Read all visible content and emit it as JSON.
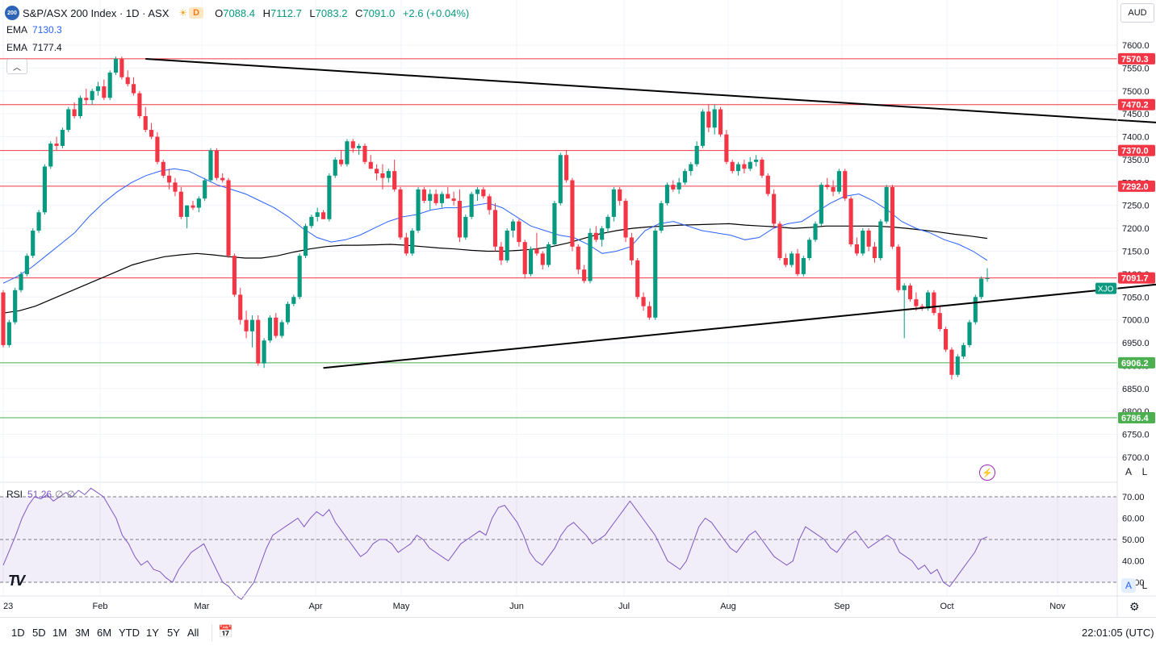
{
  "header": {
    "symbol_badge": "200",
    "title": "S&P/ASX 200 Index · 1D · ASX",
    "market_status": "D",
    "ohlc": {
      "o_label": "O",
      "o": "7088.4",
      "h_label": "H",
      "h": "7112.7",
      "l_label": "L",
      "l": "7083.2",
      "c_label": "C",
      "c": "7091.0",
      "change": "+2.6 (+0.04%)"
    }
  },
  "indicators": {
    "ema_fast": {
      "label": "EMA",
      "value": "7130.3",
      "color": "#2962ff"
    },
    "ema_slow": {
      "label": "EMA",
      "value": "7177.4",
      "color": "#000000"
    },
    "rsi": {
      "label": "RSI",
      "value": "51.26",
      "extra1": "∅",
      "extra2": "∅",
      "color": "#7e57c2"
    }
  },
  "currency": "AUD",
  "auto_label": "A",
  "log_label": "L",
  "timeframes": [
    "1D",
    "5D",
    "1M",
    "3M",
    "6M",
    "YTD",
    "1Y",
    "5Y",
    "All"
  ],
  "clock": "22:01:05 (UTC)",
  "colors": {
    "up": "#089981",
    "down": "#f23645",
    "resistance": "#f23645",
    "support": "#4caf50",
    "rsi_band": "#7e57c2"
  },
  "chart_data": {
    "type": "candlestick",
    "ylim": [
      6650,
      7650
    ],
    "y_ticks": [
      "7600.0",
      "7550.0",
      "7500.0",
      "7450.0",
      "7400.0",
      "7350.0",
      "7300.0",
      "7250.0",
      "7200.0",
      "7150.0",
      "7100.0",
      "7050.0",
      "7000.0",
      "6950.0",
      "6900.0",
      "6850.0",
      "6800.0",
      "6750.0",
      "6700.0"
    ],
    "x_labels": [
      "23",
      "Feb",
      "Mar",
      "Apr",
      "May",
      "Jun",
      "Jul",
      "Aug",
      "Sep",
      "Oct",
      "Nov"
    ],
    "price_tag": {
      "label": "XJO",
      "value": "7091.7"
    },
    "horizontal_levels": [
      {
        "value": 7570.3,
        "label": "7570.3",
        "type": "resistance"
      },
      {
        "value": 7470.2,
        "label": "7470.2",
        "type": "resistance"
      },
      {
        "value": 7370.0,
        "label": "7370.0",
        "type": "resistance"
      },
      {
        "value": 7292.0,
        "label": "7292.0",
        "type": "resistance"
      },
      {
        "value": 7091.7,
        "label": "7091.7",
        "type": "resistance"
      },
      {
        "value": 6906.2,
        "label": "6906.2",
        "type": "support"
      },
      {
        "value": 6786.4,
        "label": "6786.4",
        "type": "support"
      }
    ],
    "trendlines": [
      {
        "from": [
          24,
          7570
        ],
        "to": [
          202,
          7425
        ]
      },
      {
        "from": [
          54,
          6895
        ],
        "to": [
          212,
          7100
        ]
      }
    ],
    "candles": [
      [
        7060,
        7065,
        6940,
        6945
      ],
      [
        6945,
        7000,
        6940,
        6995
      ],
      [
        6995,
        7070,
        6990,
        7065
      ],
      [
        7065,
        7105,
        7060,
        7100
      ],
      [
        7100,
        7145,
        7095,
        7140
      ],
      [
        7140,
        7200,
        7135,
        7195
      ],
      [
        7195,
        7240,
        7190,
        7235
      ],
      [
        7235,
        7340,
        7230,
        7335
      ],
      [
        7335,
        7390,
        7330,
        7385
      ],
      [
        7385,
        7400,
        7370,
        7380
      ],
      [
        7380,
        7420,
        7375,
        7415
      ],
      [
        7415,
        7465,
        7410,
        7460
      ],
      [
        7460,
        7475,
        7440,
        7445
      ],
      [
        7445,
        7490,
        7440,
        7485
      ],
      [
        7485,
        7505,
        7470,
        7480
      ],
      [
        7480,
        7505,
        7470,
        7500
      ],
      [
        7500,
        7520,
        7490,
        7510
      ],
      [
        7510,
        7525,
        7480,
        7485
      ],
      [
        7485,
        7545,
        7480,
        7540
      ],
      [
        7540,
        7575,
        7535,
        7570
      ],
      [
        7570,
        7575,
        7525,
        7530
      ],
      [
        7530,
        7545,
        7510,
        7515
      ],
      [
        7515,
        7530,
        7490,
        7495
      ],
      [
        7495,
        7500,
        7440,
        7445
      ],
      [
        7445,
        7465,
        7410,
        7415
      ],
      [
        7415,
        7430,
        7395,
        7400
      ],
      [
        7400,
        7410,
        7340,
        7345
      ],
      [
        7345,
        7350,
        7310,
        7315
      ],
      [
        7315,
        7330,
        7285,
        7300
      ],
      [
        7300,
        7310,
        7270,
        7280
      ],
      [
        7280,
        7290,
        7220,
        7225
      ],
      [
        7225,
        7250,
        7200,
        7250
      ],
      [
        7250,
        7260,
        7240,
        7245
      ],
      [
        7245,
        7270,
        7235,
        7265
      ],
      [
        7265,
        7310,
        7260,
        7305
      ],
      [
        7305,
        7375,
        7300,
        7370
      ],
      [
        7370,
        7375,
        7305,
        7310
      ],
      [
        7310,
        7320,
        7300,
        7305
      ],
      [
        7305,
        7310,
        7135,
        7140
      ],
      [
        7140,
        7145,
        7050,
        7055
      ],
      [
        7055,
        7070,
        6990,
        7000
      ],
      [
        7000,
        7020,
        6960,
        6975
      ],
      [
        6975,
        7010,
        6940,
        7000
      ],
      [
        7000,
        7010,
        6900,
        6905
      ],
      [
        6905,
        6960,
        6895,
        6955
      ],
      [
        6955,
        7010,
        6950,
        7005
      ],
      [
        7005,
        7015,
        6960,
        6965
      ],
      [
        6965,
        7000,
        6960,
        6995
      ],
      [
        6995,
        7040,
        6990,
        7035
      ],
      [
        7035,
        7055,
        7030,
        7050
      ],
      [
        7050,
        7145,
        7045,
        7140
      ],
      [
        7140,
        7210,
        7135,
        7205
      ],
      [
        7205,
        7230,
        7200,
        7225
      ],
      [
        7225,
        7245,
        7215,
        7235
      ],
      [
        7235,
        7240,
        7220,
        7220
      ],
      [
        7220,
        7320,
        7215,
        7315
      ],
      [
        7315,
        7355,
        7310,
        7350
      ],
      [
        7350,
        7370,
        7335,
        7340
      ],
      [
        7340,
        7395,
        7335,
        7390
      ],
      [
        7390,
        7395,
        7365,
        7375
      ],
      [
        7375,
        7385,
        7360,
        7380
      ],
      [
        7380,
        7385,
        7340,
        7345
      ],
      [
        7345,
        7360,
        7330,
        7330
      ],
      [
        7330,
        7340,
        7305,
        7320
      ],
      [
        7320,
        7340,
        7285,
        7310
      ],
      [
        7310,
        7330,
        7300,
        7325
      ],
      [
        7325,
        7350,
        7280,
        7285
      ],
      [
        7285,
        7290,
        7175,
        7180
      ],
      [
        7180,
        7190,
        7140,
        7145
      ],
      [
        7145,
        7200,
        7140,
        7195
      ],
      [
        7195,
        7290,
        7190,
        7285
      ],
      [
        7285,
        7290,
        7255,
        7260
      ],
      [
        7260,
        7285,
        7240,
        7275
      ],
      [
        7275,
        7285,
        7250,
        7255
      ],
      [
        7255,
        7280,
        7245,
        7275
      ],
      [
        7275,
        7290,
        7265,
        7265
      ],
      [
        7265,
        7280,
        7250,
        7260
      ],
      [
        7260,
        7285,
        7170,
        7180
      ],
      [
        7180,
        7230,
        7175,
        7225
      ],
      [
        7225,
        7280,
        7220,
        7275
      ],
      [
        7275,
        7290,
        7260,
        7285
      ],
      [
        7285,
        7290,
        7265,
        7270
      ],
      [
        7270,
        7275,
        7230,
        7240
      ],
      [
        7240,
        7255,
        7150,
        7160
      ],
      [
        7160,
        7170,
        7120,
        7130
      ],
      [
        7130,
        7200,
        7125,
        7195
      ],
      [
        7195,
        7220,
        7180,
        7215
      ],
      [
        7215,
        7220,
        7160,
        7170
      ],
      [
        7170,
        7175,
        7090,
        7100
      ],
      [
        7100,
        7160,
        7095,
        7155
      ],
      [
        7155,
        7190,
        7140,
        7145
      ],
      [
        7145,
        7150,
        7110,
        7120
      ],
      [
        7120,
        7170,
        7115,
        7165
      ],
      [
        7165,
        7260,
        7160,
        7255
      ],
      [
        7255,
        7365,
        7250,
        7360
      ],
      [
        7360,
        7370,
        7300,
        7305
      ],
      [
        7305,
        7310,
        7150,
        7160
      ],
      [
        7160,
        7165,
        7100,
        7110
      ],
      [
        7110,
        7120,
        7080,
        7085
      ],
      [
        7085,
        7200,
        7080,
        7190
      ],
      [
        7190,
        7205,
        7170,
        7175
      ],
      [
        7175,
        7205,
        7160,
        7200
      ],
      [
        7200,
        7230,
        7190,
        7225
      ],
      [
        7225,
        7290,
        7215,
        7285
      ],
      [
        7285,
        7290,
        7250,
        7260
      ],
      [
        7260,
        7265,
        7170,
        7180
      ],
      [
        7180,
        7190,
        7120,
        7130
      ],
      [
        7130,
        7135,
        7045,
        7050
      ],
      [
        7050,
        7060,
        7020,
        7030
      ],
      [
        7030,
        7040,
        7000,
        7005
      ],
      [
        7005,
        7200,
        7000,
        7195
      ],
      [
        7195,
        7260,
        7190,
        7255
      ],
      [
        7255,
        7300,
        7250,
        7295
      ],
      [
        7295,
        7305,
        7280,
        7285
      ],
      [
        7285,
        7310,
        7275,
        7300
      ],
      [
        7300,
        7330,
        7295,
        7325
      ],
      [
        7325,
        7345,
        7315,
        7340
      ],
      [
        7340,
        7390,
        7335,
        7380
      ],
      [
        7380,
        7460,
        7375,
        7455
      ],
      [
        7455,
        7470,
        7410,
        7420
      ],
      [
        7420,
        7470,
        7405,
        7460
      ],
      [
        7460,
        7465,
        7400,
        7405
      ],
      [
        7405,
        7415,
        7340,
        7345
      ],
      [
        7345,
        7350,
        7320,
        7325
      ],
      [
        7325,
        7345,
        7315,
        7340
      ],
      [
        7340,
        7350,
        7320,
        7330
      ],
      [
        7330,
        7355,
        7325,
        7345
      ],
      [
        7345,
        7360,
        7335,
        7350
      ],
      [
        7350,
        7355,
        7310,
        7315
      ],
      [
        7315,
        7320,
        7270,
        7275
      ],
      [
        7275,
        7285,
        7200,
        7210
      ],
      [
        7210,
        7215,
        7130,
        7135
      ],
      [
        7135,
        7145,
        7115,
        7120
      ],
      [
        7120,
        7150,
        7115,
        7145
      ],
      [
        7145,
        7155,
        7095,
        7100
      ],
      [
        7100,
        7140,
        7095,
        7135
      ],
      [
        7135,
        7180,
        7130,
        7175
      ],
      [
        7175,
        7215,
        7170,
        7210
      ],
      [
        7210,
        7300,
        7205,
        7295
      ],
      [
        7295,
        7310,
        7285,
        7290
      ],
      [
        7290,
        7305,
        7270,
        7280
      ],
      [
        7280,
        7330,
        7275,
        7325
      ],
      [
        7325,
        7330,
        7260,
        7265
      ],
      [
        7265,
        7270,
        7160,
        7165
      ],
      [
        7165,
        7180,
        7140,
        7145
      ],
      [
        7145,
        7200,
        7140,
        7195
      ],
      [
        7195,
        7200,
        7150,
        7160
      ],
      [
        7160,
        7170,
        7125,
        7135
      ],
      [
        7135,
        7220,
        7130,
        7215
      ],
      [
        7215,
        7295,
        7210,
        7290
      ],
      [
        7290,
        7295,
        7155,
        7160
      ],
      [
        7160,
        7165,
        7060,
        7065
      ],
      [
        7065,
        7080,
        6960,
        7075
      ],
      [
        7075,
        7080,
        7040,
        7045
      ],
      [
        7045,
        7060,
        7020,
        7030
      ],
      [
        7030,
        7035,
        7020,
        7025
      ],
      [
        7025,
        7065,
        7020,
        7060
      ],
      [
        7060,
        7065,
        7010,
        7015
      ],
      [
        7015,
        7030,
        6975,
        6980
      ],
      [
        6980,
        6985,
        6930,
        6935
      ],
      [
        6935,
        6940,
        6870,
        6880
      ],
      [
        6880,
        6925,
        6875,
        6920
      ],
      [
        6920,
        6950,
        6915,
        6945
      ],
      [
        6945,
        7000,
        6940,
        6995
      ],
      [
        6995,
        7055,
        6990,
        7050
      ],
      [
        7050,
        7095,
        7045,
        7090
      ],
      [
        7090,
        7113,
        7083,
        7091
      ]
    ],
    "ema_fast_values": [
      7080,
      7095,
      7115,
      7140,
      7165,
      7190,
      7225,
      7255,
      7280,
      7300,
      7315,
      7325,
      7330,
      7325,
      7310,
      7295,
      7285,
      7275,
      7260,
      7245,
      7225,
      7200,
      7180,
      7170,
      7175,
      7185,
      7200,
      7215,
      7225,
      7230,
      7240,
      7245,
      7245,
      7250,
      7255,
      7245,
      7225,
      7205,
      7195,
      7185,
      7180,
      7165,
      7145,
      7150,
      7160,
      7195,
      7210,
      7215,
      7205,
      7195,
      7190,
      7185,
      7175,
      7180,
      7200,
      7210,
      7215,
      7235,
      7255,
      7270,
      7275,
      7260,
      7240,
      7215,
      7200,
      7190,
      7175,
      7165,
      7150,
      7130
    ],
    "ema_slow_values": [
      7015,
      7020,
      7030,
      7045,
      7060,
      7075,
      7090,
      7105,
      7120,
      7130,
      7138,
      7142,
      7145,
      7142,
      7138,
      7135,
      7135,
      7140,
      7148,
      7155,
      7160,
      7163,
      7163,
      7164,
      7165,
      7163,
      7160,
      7157,
      7155,
      7152,
      7150,
      7150,
      7152,
      7155,
      7160,
      7168,
      7178,
      7188,
      7195,
      7200,
      7203,
      7205,
      7207,
      7208,
      7209,
      7210,
      7207,
      7205,
      7203,
      7200,
      7202,
      7205,
      7205,
      7205,
      7205,
      7203,
      7200,
      7196,
      7192,
      7187,
      7183,
      7178
    ],
    "rsi": {
      "ylim": [
        20,
        80
      ],
      "ticks": [
        "70.00",
        "60.00",
        "50.00",
        "40.00",
        "30.00"
      ],
      "values": [
        38,
        45,
        52,
        60,
        66,
        70,
        69,
        71,
        68,
        70,
        72,
        70,
        73,
        71,
        74,
        72,
        70,
        65,
        60,
        52,
        48,
        42,
        38,
        40,
        36,
        35,
        32,
        30,
        36,
        40,
        44,
        46,
        48,
        42,
        36,
        30,
        28,
        24,
        22,
        26,
        30,
        38,
        46,
        52,
        54,
        56,
        58,
        60,
        56,
        60,
        63,
        61,
        64,
        58,
        54,
        50,
        46,
        42,
        44,
        48,
        50,
        50,
        48,
        44,
        46,
        48,
        52,
        50,
        46,
        44,
        42,
        40,
        44,
        48,
        50,
        52,
        54,
        52,
        60,
        65,
        66,
        62,
        58,
        52,
        44,
        40,
        38,
        42,
        46,
        52,
        56,
        58,
        55,
        52,
        48,
        50,
        52,
        56,
        60,
        64,
        68,
        64,
        60,
        56,
        52,
        46,
        40,
        38,
        36,
        40,
        48,
        56,
        60,
        58,
        54,
        50,
        46,
        44,
        48,
        52,
        54,
        50,
        46,
        42,
        40,
        38,
        40,
        50,
        56,
        54,
        52,
        50,
        46,
        44,
        48,
        52,
        54,
        50,
        46,
        48,
        50,
        52,
        50,
        44,
        42,
        40,
        36,
        38,
        34,
        36,
        30,
        28,
        32,
        36,
        40,
        44,
        50,
        51.26
      ]
    }
  }
}
